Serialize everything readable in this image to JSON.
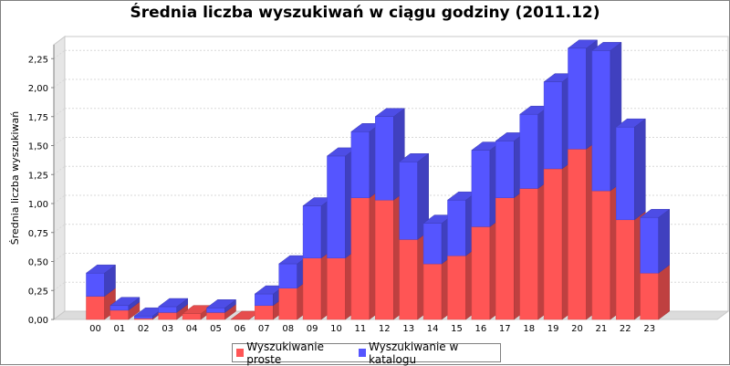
{
  "chart_data": {
    "type": "bar",
    "stacked": true,
    "three_d": true,
    "title": "Średnia liczba wyszukiwań w ciągu godziny (2011.12)",
    "ylabel": "Średnia liczba wyszukiwań",
    "xlabel": "",
    "ylim": [
      0,
      2.5
    ],
    "yticks": [
      "0,00",
      "0,25",
      "0,50",
      "0,75",
      "1,00",
      "1,25",
      "1,50",
      "1,75",
      "2,00",
      "2,25"
    ],
    "grid": true,
    "legend_position": "bottom",
    "categories": [
      "00",
      "01",
      "02",
      "03",
      "04",
      "05",
      "06",
      "07",
      "08",
      "09",
      "10",
      "11",
      "12",
      "13",
      "14",
      "15",
      "16",
      "17",
      "18",
      "19",
      "20",
      "21",
      "22",
      "23"
    ],
    "series": [
      {
        "name": "Wyszukiwanie proste",
        "color": "#ff5555",
        "values": [
          0.2,
          0.08,
          0.01,
          0.06,
          0.05,
          0.06,
          0.0,
          0.12,
          0.27,
          0.53,
          0.53,
          1.05,
          1.03,
          0.69,
          0.48,
          0.55,
          0.8,
          1.05,
          1.13,
          1.3,
          1.47,
          1.11,
          0.86,
          0.4
        ]
      },
      {
        "name": "Wyszukiwanie w katalogu",
        "color": "#5555ff",
        "values": [
          0.2,
          0.04,
          0.02,
          0.05,
          0.0,
          0.04,
          0.0,
          0.1,
          0.21,
          0.45,
          0.88,
          0.57,
          0.72,
          0.67,
          0.35,
          0.48,
          0.66,
          0.49,
          0.64,
          0.75,
          0.87,
          1.21,
          0.8,
          0.48
        ]
      }
    ]
  }
}
